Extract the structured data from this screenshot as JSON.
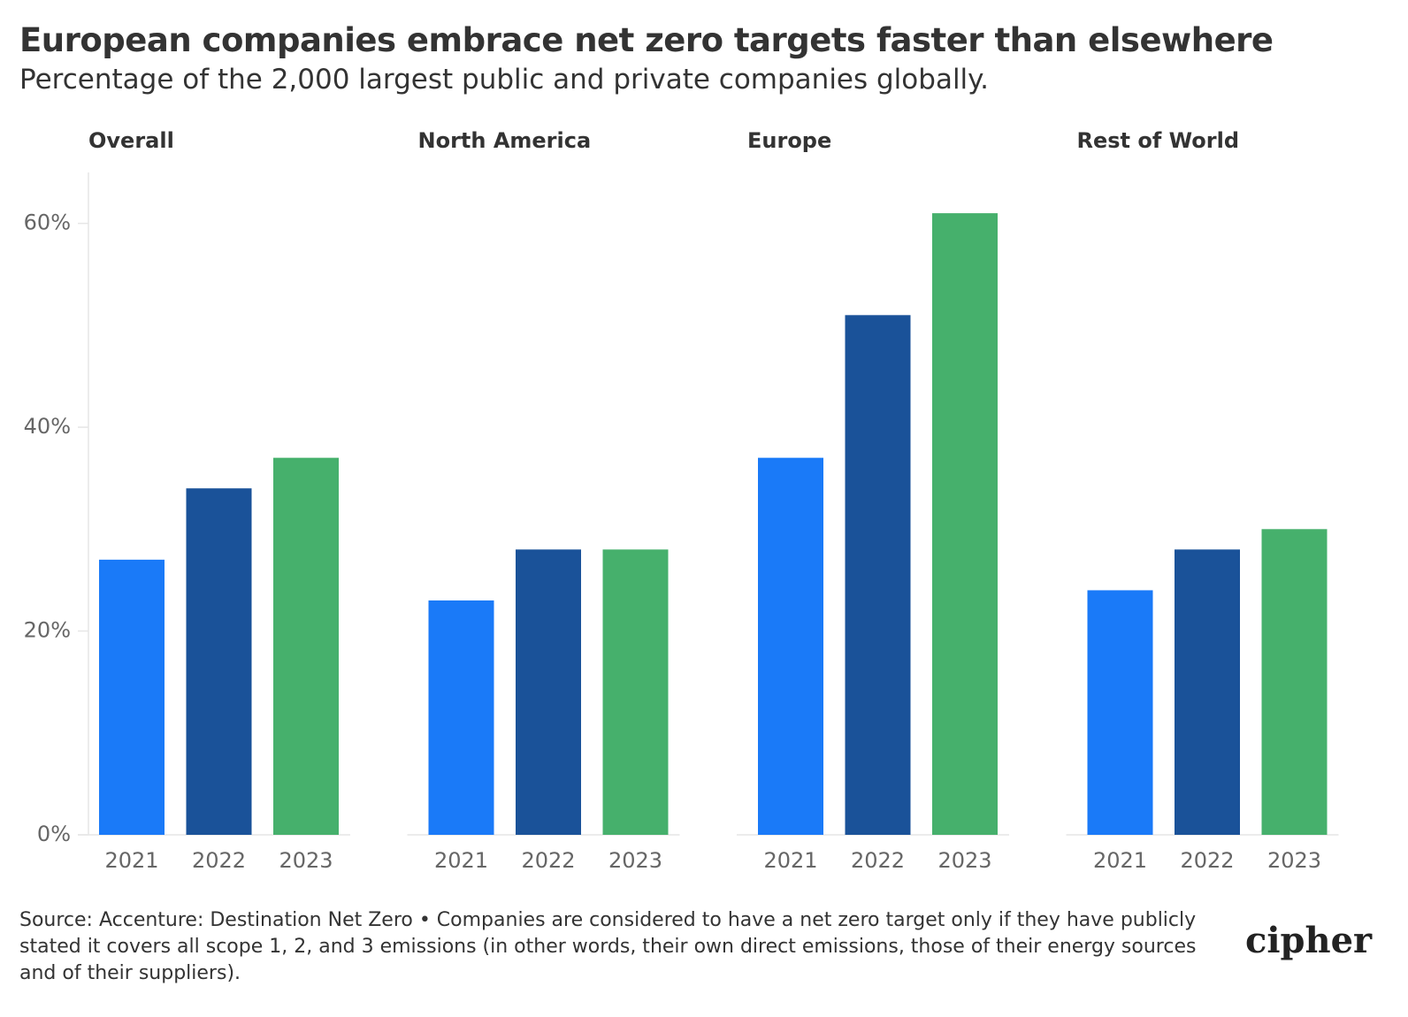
{
  "title": "European companies embrace net zero targets faster than elsewhere",
  "subtitle": "Percentage of the 2,000 largest public and private companies globally.",
  "source": "Source: Accenture: Destination Net Zero • Companies are considered to have a net zero target only if they have publicly stated it covers all scope 1, 2, and 3 emissions (in other words, their own direct emissions, those of their energy sources and of their suppliers).",
  "logo": "cipher",
  "chart_data": [
    {
      "type": "bar",
      "title": "Overall",
      "categories": [
        "2021",
        "2022",
        "2023"
      ],
      "values": [
        27,
        34,
        37
      ],
      "colors": [
        "#1a7af8",
        "#1a5299",
        "#46b06c"
      ],
      "ylim": [
        0,
        65
      ],
      "yticks": [
        {
          "value": 0,
          "label": "0%"
        },
        {
          "value": 20,
          "label": "20%"
        },
        {
          "value": 40,
          "label": "40%"
        },
        {
          "value": 60,
          "label": "60%"
        }
      ]
    },
    {
      "type": "bar",
      "title": "North America",
      "categories": [
        "2021",
        "2022",
        "2023"
      ],
      "values": [
        23,
        28,
        28
      ],
      "colors": [
        "#1a7af8",
        "#1a5299",
        "#46b06c"
      ],
      "ylim": [
        0,
        65
      ]
    },
    {
      "type": "bar",
      "title": "Europe",
      "categories": [
        "2021",
        "2022",
        "2023"
      ],
      "values": [
        37,
        51,
        61
      ],
      "colors": [
        "#1a7af8",
        "#1a5299",
        "#46b06c"
      ],
      "ylim": [
        0,
        65
      ]
    },
    {
      "type": "bar",
      "title": "Rest of World",
      "categories": [
        "2021",
        "2022",
        "2023"
      ],
      "values": [
        24,
        28,
        30
      ],
      "colors": [
        "#1a7af8",
        "#1a5299",
        "#46b06c"
      ],
      "ylim": [
        0,
        65
      ]
    }
  ]
}
